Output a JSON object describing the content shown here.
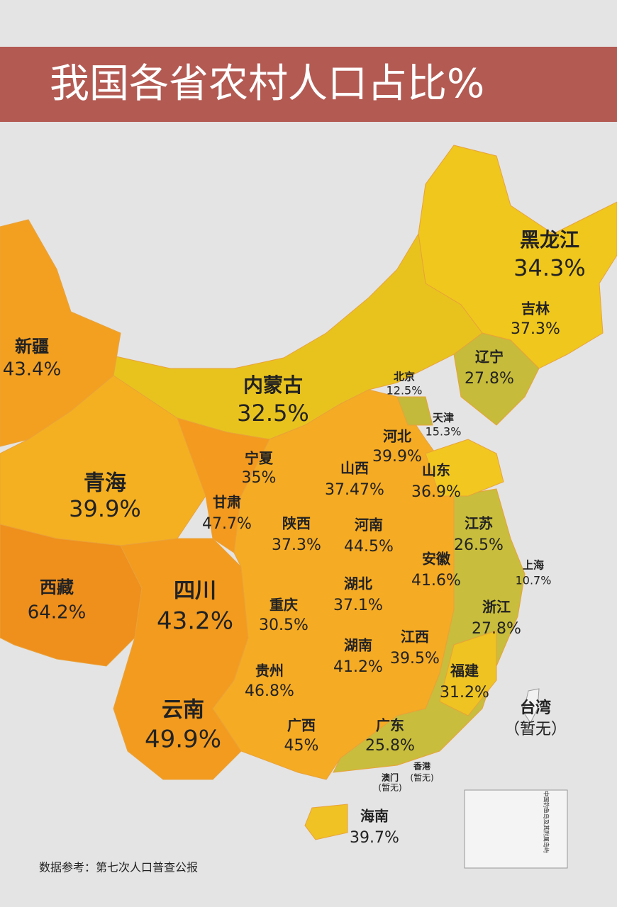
{
  "title": "我国各省农村人口占比%",
  "regions": [
    {
      "name": "黑龙江",
      "value": "34.3%"
    },
    {
      "name": "吉林",
      "value": "37.3%"
    },
    {
      "name": "辽宁",
      "value": "27.8%"
    },
    {
      "name": "北京",
      "value": "12.5%"
    },
    {
      "name": "天津",
      "value": "15.3%"
    },
    {
      "name": "河北",
      "value": "39.9%"
    },
    {
      "name": "山东",
      "value": "36.9%"
    },
    {
      "name": "内蒙古",
      "value": "32.5%"
    },
    {
      "name": "宁夏",
      "value": "35%"
    },
    {
      "name": "山西",
      "value": "37.47%"
    },
    {
      "name": "新疆",
      "value": "43.4%"
    },
    {
      "name": "青海",
      "value": "39.9%"
    },
    {
      "name": "甘肃",
      "value": "47.7%"
    },
    {
      "name": "陕西",
      "value": "37.3%"
    },
    {
      "name": "河南",
      "value": "44.5%"
    },
    {
      "name": "江苏",
      "value": "26.5%"
    },
    {
      "name": "上海",
      "value": "10.7%"
    },
    {
      "name": "安徽",
      "value": "41.6%"
    },
    {
      "name": "西藏",
      "value": "64.2%"
    },
    {
      "name": "四川",
      "value": "43.2%"
    },
    {
      "name": "湖北",
      "value": "37.1%"
    },
    {
      "name": "重庆",
      "value": "30.5%"
    },
    {
      "name": "浙江",
      "value": "27.8%"
    },
    {
      "name": "湖南",
      "value": "41.2%"
    },
    {
      "name": "江西",
      "value": "39.5%"
    },
    {
      "name": "贵州",
      "value": "46.8%"
    },
    {
      "name": "福建",
      "value": "31.2%"
    },
    {
      "name": "台湾",
      "value": "（暂无）"
    },
    {
      "name": "云南",
      "value": "49.9%"
    },
    {
      "name": "广西",
      "value": "45%"
    },
    {
      "name": "广东",
      "value": "25.8%"
    },
    {
      "name": "澳门",
      "value": "(暂无)"
    },
    {
      "name": "香港",
      "value": "(暂无)"
    },
    {
      "name": "海南",
      "value": "39.7%"
    }
  ],
  "inset": {
    "label": "中国钓鱼岛及其附属岛屿"
  },
  "source": "数据参考：第七次人口普查公报"
}
